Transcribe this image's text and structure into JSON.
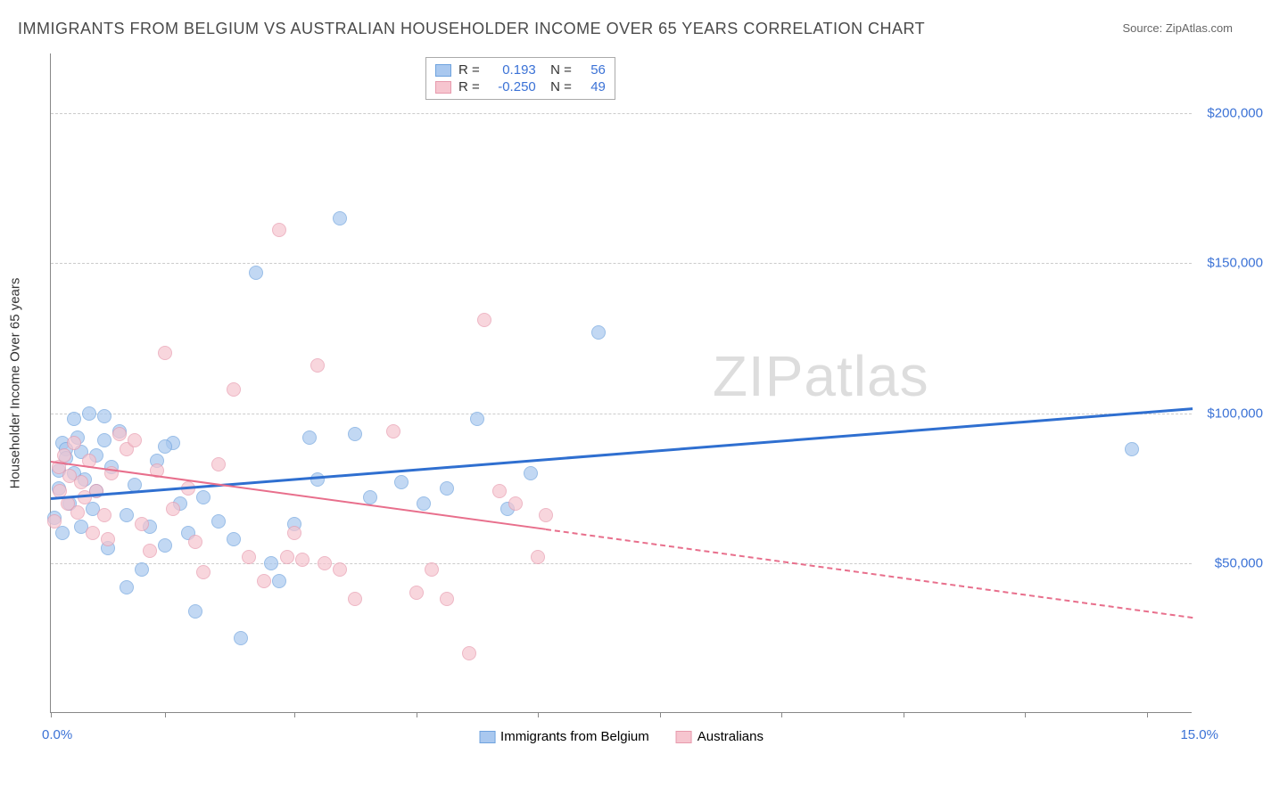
{
  "title": "IMMIGRANTS FROM BELGIUM VS AUSTRALIAN HOUSEHOLDER INCOME OVER 65 YEARS CORRELATION CHART",
  "source": "Source: ZipAtlas.com",
  "watermark": "ZIPatlas",
  "y_axis_title": "Householder Income Over 65 years",
  "chart": {
    "type": "scatter",
    "xlim": [
      0,
      15
    ],
    "ylim": [
      0,
      220000
    ],
    "x_tick_positions": [
      0,
      1.5,
      3.2,
      4.8,
      6.4,
      8.0,
      9.6,
      11.2,
      12.8,
      14.4
    ],
    "x_labels": {
      "min": "0.0%",
      "max": "15.0%"
    },
    "y_gridlines": [
      {
        "value": 50000,
        "label": "$50,000"
      },
      {
        "value": 100000,
        "label": "$100,000"
      },
      {
        "value": 150000,
        "label": "$150,000"
      },
      {
        "value": 200000,
        "label": "$200,000"
      }
    ],
    "background_color": "#ffffff",
    "grid_color": "#cccccc",
    "axis_color": "#888888",
    "tick_label_color": "#3b72d6"
  },
  "series": [
    {
      "name": "Immigrants from Belgium",
      "fill": "#a9c8ef",
      "stroke": "#6fa3de",
      "marker_r": 8,
      "trend": {
        "x1": 0,
        "y1": 72000,
        "x2": 15,
        "y2": 102000,
        "color": "#2f6fd0",
        "width": 2.5,
        "solid_until_x": 15
      },
      "stats": {
        "R": "0.193",
        "N": "56"
      },
      "points": [
        [
          0.05,
          65000
        ],
        [
          0.1,
          81000
        ],
        [
          0.1,
          75000
        ],
        [
          0.15,
          90000
        ],
        [
          0.15,
          60000
        ],
        [
          0.2,
          88000
        ],
        [
          0.2,
          85000
        ],
        [
          0.25,
          70000
        ],
        [
          0.3,
          98000
        ],
        [
          0.3,
          80000
        ],
        [
          0.35,
          92000
        ],
        [
          0.4,
          62000
        ],
        [
          0.4,
          87000
        ],
        [
          0.45,
          78000
        ],
        [
          0.5,
          100000
        ],
        [
          0.55,
          68000
        ],
        [
          0.6,
          86000
        ],
        [
          0.6,
          74000
        ],
        [
          0.7,
          91000
        ],
        [
          0.75,
          55000
        ],
        [
          0.8,
          82000
        ],
        [
          0.9,
          94000
        ],
        [
          1.0,
          66000
        ],
        [
          1.0,
          42000
        ],
        [
          1.1,
          76000
        ],
        [
          1.2,
          48000
        ],
        [
          1.3,
          62000
        ],
        [
          1.4,
          84000
        ],
        [
          1.5,
          56000
        ],
        [
          1.6,
          90000
        ],
        [
          1.7,
          70000
        ],
        [
          1.8,
          60000
        ],
        [
          1.9,
          34000
        ],
        [
          2.0,
          72000
        ],
        [
          2.2,
          64000
        ],
        [
          2.4,
          58000
        ],
        [
          2.5,
          25000
        ],
        [
          2.7,
          147000
        ],
        [
          2.9,
          50000
        ],
        [
          3.0,
          44000
        ],
        [
          3.4,
          92000
        ],
        [
          3.5,
          78000
        ],
        [
          3.8,
          165000
        ],
        [
          4.0,
          93000
        ],
        [
          4.2,
          72000
        ],
        [
          4.6,
          77000
        ],
        [
          4.9,
          70000
        ],
        [
          5.2,
          75000
        ],
        [
          5.6,
          98000
        ],
        [
          6.0,
          68000
        ],
        [
          6.3,
          80000
        ],
        [
          7.2,
          127000
        ],
        [
          14.2,
          88000
        ],
        [
          0.7,
          99000
        ],
        [
          1.5,
          89000
        ],
        [
          3.2,
          63000
        ]
      ]
    },
    {
      "name": "Australians",
      "fill": "#f6c5cf",
      "stroke": "#e79aad",
      "marker_r": 8,
      "trend": {
        "x1": 0,
        "y1": 84000,
        "x2": 15,
        "y2": 32000,
        "color": "#e86f8c",
        "width": 2,
        "solid_until_x": 6.5
      },
      "stats": {
        "R": "-0.250",
        "N": "49"
      },
      "points": [
        [
          0.05,
          64000
        ],
        [
          0.1,
          82000
        ],
        [
          0.12,
          74000
        ],
        [
          0.18,
          86000
        ],
        [
          0.22,
          70000
        ],
        [
          0.25,
          79000
        ],
        [
          0.3,
          90000
        ],
        [
          0.35,
          67000
        ],
        [
          0.4,
          77000
        ],
        [
          0.45,
          72000
        ],
        [
          0.5,
          84000
        ],
        [
          0.55,
          60000
        ],
        [
          0.6,
          74000
        ],
        [
          0.7,
          66000
        ],
        [
          0.75,
          58000
        ],
        [
          0.8,
          80000
        ],
        [
          0.9,
          93000
        ],
        [
          1.0,
          88000
        ],
        [
          1.1,
          91000
        ],
        [
          1.2,
          63000
        ],
        [
          1.3,
          54000
        ],
        [
          1.4,
          81000
        ],
        [
          1.5,
          120000
        ],
        [
          1.6,
          68000
        ],
        [
          1.8,
          75000
        ],
        [
          1.9,
          57000
        ],
        [
          2.0,
          47000
        ],
        [
          2.2,
          83000
        ],
        [
          2.4,
          108000
        ],
        [
          2.6,
          52000
        ],
        [
          2.8,
          44000
        ],
        [
          3.0,
          161000
        ],
        [
          3.1,
          52000
        ],
        [
          3.2,
          60000
        ],
        [
          3.3,
          51000
        ],
        [
          3.5,
          116000
        ],
        [
          3.6,
          50000
        ],
        [
          3.8,
          48000
        ],
        [
          4.0,
          38000
        ],
        [
          4.5,
          94000
        ],
        [
          4.8,
          40000
        ],
        [
          5.0,
          48000
        ],
        [
          5.2,
          38000
        ],
        [
          5.5,
          20000
        ],
        [
          5.7,
          131000
        ],
        [
          5.9,
          74000
        ],
        [
          6.1,
          70000
        ],
        [
          6.4,
          52000
        ],
        [
          6.5,
          66000
        ]
      ]
    }
  ],
  "stats_box": {
    "R_label": "R =",
    "N_label": "N ="
  },
  "legend": {
    "items": [
      {
        "label": "Immigrants from Belgium",
        "fill": "#a9c8ef",
        "stroke": "#6fa3de"
      },
      {
        "label": "Australians",
        "fill": "#f6c5cf",
        "stroke": "#e79aad"
      }
    ]
  }
}
